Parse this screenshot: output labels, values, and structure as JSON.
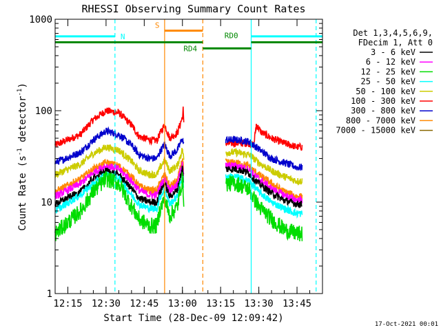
{
  "chart_data": {
    "type": "line",
    "title": "RHESSI Observing Summary Count Rates",
    "xlabel": "Start Time (28-Dec-09 12:09:42)",
    "ylabel_main": "Count Rate (s",
    "ylabel_sup1": "-1",
    "ylabel_mid": " detector",
    "ylabel_sup2": "-1",
    "ylabel_end": ")",
    "yscale": "log",
    "ylim": [
      1,
      1000
    ],
    "xlim_minutes": [
      -5,
      100
    ],
    "x_ticks": [
      {
        "t": 0,
        "label": "12:15"
      },
      {
        "t": 15,
        "label": "12:30"
      },
      {
        "t": 30,
        "label": "12:45"
      },
      {
        "t": 45,
        "label": "13:00"
      },
      {
        "t": 60,
        "label": "13:15"
      },
      {
        "t": 75,
        "label": "13:30"
      },
      {
        "t": 90,
        "label": "13:45"
      }
    ],
    "y_ticks": [
      {
        "v": 1,
        "label": "1"
      },
      {
        "v": 10,
        "label": "10"
      },
      {
        "v": 100,
        "label": "100"
      },
      {
        "v": 1000,
        "label": "1000"
      }
    ],
    "legend": {
      "header": [
        "Det 1,3,4,5,6,9,",
        "FDecim 1, Att 0"
      ],
      "entries": [
        {
          "label": "3 - 6 keV",
          "color": "#000000"
        },
        {
          "label": "6 - 12 keV",
          "color": "#ff00ff"
        },
        {
          "label": "12 - 25 keV",
          "color": "#00dd00"
        },
        {
          "label": "25 - 50 keV",
          "color": "#00ffff"
        },
        {
          "label": "50 - 100 keV",
          "color": "#cccc00"
        },
        {
          "label": "100 - 300 keV",
          "color": "#ff0000"
        },
        {
          "label": "300 - 800 keV",
          "color": "#0000cc"
        },
        {
          "label": "800 - 7000 keV",
          "color": "#ff8800"
        },
        {
          "label": "7000 - 15000 keV",
          "color": "#886600"
        }
      ]
    },
    "series": [
      {
        "color": "#ff0000",
        "segments": [
          [
            [
              -5,
              42
            ],
            [
              5,
              55
            ],
            [
              10,
              80
            ],
            [
              15,
              100
            ],
            [
              20,
              95
            ],
            [
              25,
              70
            ],
            [
              28,
              52
            ],
            [
              32,
              48
            ],
            [
              35,
              47
            ],
            [
              36,
              55
            ],
            [
              38,
              70
            ],
            [
              40,
              50
            ],
            [
              43,
              57
            ],
            [
              45,
              85
            ],
            [
              45.3,
              105
            ],
            [
              45.6,
              60
            ]
          ],
          [
            [
              62,
              44
            ],
            [
              66,
              44
            ],
            [
              71,
              44
            ],
            [
              73,
              42
            ],
            [
              74,
              70
            ],
            [
              76,
              58
            ],
            [
              80,
              50
            ],
            [
              85,
              44
            ],
            [
              90,
              40
            ],
            [
              92,
              40
            ]
          ]
        ]
      },
      {
        "color": "#0000cc",
        "segments": [
          [
            [
              -5,
              27
            ],
            [
              5,
              35
            ],
            [
              10,
              48
            ],
            [
              15,
              60
            ],
            [
              20,
              55
            ],
            [
              25,
              42
            ],
            [
              28,
              33
            ],
            [
              32,
              30
            ],
            [
              35,
              30
            ],
            [
              36,
              35
            ],
            [
              38,
              43
            ],
            [
              40,
              32
            ],
            [
              43,
              37
            ],
            [
              45,
              50
            ],
            [
              45.6,
              40
            ]
          ],
          [
            [
              62,
              48
            ],
            [
              66,
              48
            ],
            [
              71,
              46
            ],
            [
              73,
              42
            ],
            [
              75,
              38
            ],
            [
              80,
              30
            ],
            [
              85,
              27
            ],
            [
              90,
              24
            ],
            [
              92,
              24
            ]
          ]
        ]
      },
      {
        "color": "#cccc00",
        "segments": [
          [
            [
              -5,
              20
            ],
            [
              5,
              26
            ],
            [
              10,
              34
            ],
            [
              15,
              40
            ],
            [
              20,
              37
            ],
            [
              25,
              28
            ],
            [
              28,
              22
            ],
            [
              32,
              20
            ],
            [
              35,
              20
            ],
            [
              36,
              23
            ],
            [
              38,
              29
            ],
            [
              40,
              22
            ],
            [
              43,
              25
            ],
            [
              45,
              38
            ],
            [
              45.6,
              28
            ]
          ],
          [
            [
              62,
              35
            ],
            [
              66,
              35
            ],
            [
              71,
              33
            ],
            [
              73,
              30
            ],
            [
              75,
              27
            ],
            [
              80,
              22
            ],
            [
              85,
              19
            ],
            [
              90,
              17
            ],
            [
              92,
              17
            ]
          ]
        ]
      },
      {
        "color": "#ff8800",
        "segments": [
          [
            [
              -5,
              13
            ],
            [
              5,
              18
            ],
            [
              10,
              23
            ],
            [
              15,
              27
            ],
            [
              20,
              25
            ],
            [
              25,
              19
            ],
            [
              28,
              15
            ],
            [
              32,
              13.5
            ],
            [
              35,
              13.5
            ],
            [
              36,
              16
            ],
            [
              38,
              20
            ],
            [
              40,
              15
            ],
            [
              43,
              17
            ],
            [
              45,
              30
            ],
            [
              45.6,
              20
            ]
          ],
          [
            [
              62,
              27
            ],
            [
              66,
              27
            ],
            [
              71,
              25
            ],
            [
              73,
              22
            ],
            [
              75,
              20
            ],
            [
              80,
              16
            ],
            [
              85,
              13
            ],
            [
              90,
              11.5
            ],
            [
              92,
              11.5
            ]
          ]
        ]
      },
      {
        "color": "#ff00ff",
        "segments": [
          [
            [
              -5,
              11.5
            ],
            [
              5,
              16
            ],
            [
              10,
              21
            ],
            [
              15,
              25
            ],
            [
              20,
              23
            ],
            [
              25,
              17
            ],
            [
              28,
              13.5
            ],
            [
              32,
              12
            ],
            [
              35,
              12
            ],
            [
              36,
              14.5
            ],
            [
              38,
              18
            ],
            [
              40,
              13.5
            ],
            [
              43,
              15.5
            ],
            [
              45,
              28
            ],
            [
              45.6,
              18
            ]
          ],
          [
            [
              62,
              25
            ],
            [
              66,
              25
            ],
            [
              71,
              23
            ],
            [
              73,
              20
            ],
            [
              75,
              18
            ],
            [
              80,
              14
            ],
            [
              85,
              12
            ],
            [
              90,
              10.5
            ],
            [
              92,
              10.5
            ]
          ]
        ]
      },
      {
        "color": "#000000",
        "segments": [
          [
            [
              -5,
              9.5
            ],
            [
              5,
              13
            ],
            [
              10,
              18
            ],
            [
              15,
              22
            ],
            [
              20,
              20
            ],
            [
              25,
              14
            ],
            [
              28,
              11
            ],
            [
              32,
              10
            ],
            [
              35,
              10
            ],
            [
              36,
              12.5
            ],
            [
              38,
              16
            ],
            [
              40,
              11.5
            ],
            [
              43,
              13.5
            ],
            [
              45,
              24
            ],
            [
              45.6,
              15
            ]
          ],
          [
            [
              62,
              23
            ],
            [
              66,
              23
            ],
            [
              71,
              21
            ],
            [
              73,
              18
            ],
            [
              75,
              16
            ],
            [
              80,
              12.5
            ],
            [
              85,
              10.5
            ],
            [
              90,
              9.5
            ],
            [
              92,
              9.5
            ]
          ]
        ]
      },
      {
        "color": "#00ffff",
        "segments": [
          [
            [
              -5,
              8
            ],
            [
              5,
              12
            ],
            [
              10,
              16
            ],
            [
              15,
              20
            ],
            [
              20,
              18
            ],
            [
              25,
              12
            ],
            [
              28,
              9.5
            ],
            [
              32,
              8.5
            ],
            [
              35,
              8.5
            ],
            [
              36,
              11
            ],
            [
              38,
              14
            ],
            [
              40,
              9.5
            ],
            [
              43,
              11.5
            ],
            [
              45,
              20
            ],
            [
              45.6,
              13
            ]
          ],
          [
            [
              62,
              19
            ],
            [
              66,
              19
            ],
            [
              71,
              17
            ],
            [
              73,
              15
            ],
            [
              75,
              13
            ],
            [
              80,
              10
            ],
            [
              85,
              8.5
            ],
            [
              90,
              7.5
            ],
            [
              92,
              7.5
            ]
          ]
        ]
      },
      {
        "color": "#00dd00",
        "segments": [
          [
            [
              -5,
              4.5
            ],
            [
              5,
              8
            ],
            [
              10,
              13
            ],
            [
              15,
              18
            ],
            [
              20,
              16
            ],
            [
              25,
              9
            ],
            [
              28,
              6.5
            ],
            [
              32,
              5.5
            ],
            [
              35,
              5.5
            ],
            [
              36,
              8
            ],
            [
              38,
              11
            ],
            [
              40,
              7
            ],
            [
              43,
              9
            ],
            [
              45,
              18
            ],
            [
              45.6,
              10
            ]
          ],
          [
            [
              62,
              16
            ],
            [
              66,
              16
            ],
            [
              71,
              14
            ],
            [
              73,
              11
            ],
            [
              75,
              9
            ],
            [
              80,
              6.5
            ],
            [
              85,
              5
            ],
            [
              90,
              4.5
            ],
            [
              92,
              4.5
            ]
          ]
        ]
      }
    ],
    "markers": {
      "saa_n": {
        "label": "N",
        "color": "#00ffff",
        "y": 650,
        "segments": [
          [
            -5,
            18.5
          ],
          [
            72,
            100
          ]
        ]
      },
      "rd_line": {
        "color": "#008800",
        "y": 560,
        "segments": [
          [
            -5,
            53
          ],
          [
            72,
            100
          ]
        ]
      },
      "rd4": {
        "label": "RD4",
        "color": "#008800",
        "y": 480,
        "from": 53,
        "to": 72
      },
      "rd0": {
        "label": "RD0",
        "color": "#008800",
        "t": 61.5
      },
      "saa_s": {
        "label": "S",
        "color": "#ff8800",
        "y": 750,
        "from": 38,
        "to": 53
      },
      "vlines": [
        {
          "t": 18.5,
          "color": "#00ffff",
          "dash": true
        },
        {
          "t": 38,
          "color": "#ff8800",
          "dash": false
        },
        {
          "t": 53,
          "color": "#ff8800",
          "dash": true
        },
        {
          "t": 72,
          "color": "#00ffff",
          "dash": false
        },
        {
          "t": 97.5,
          "color": "#00ffff",
          "dash": true
        }
      ]
    }
  },
  "footer_stamp": "17-Oct-2021 00:01"
}
